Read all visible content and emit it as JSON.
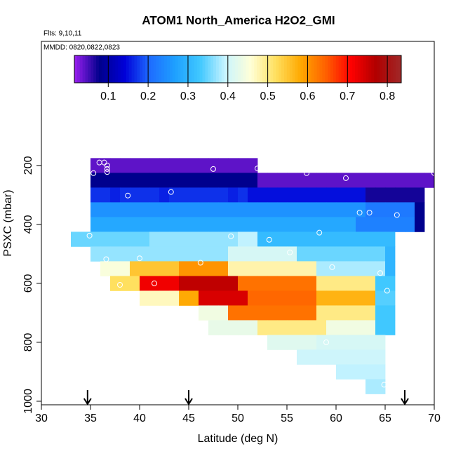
{
  "chart_data": {
    "type": "heatmap",
    "title": "ATOM1 North_America H2O2_GMI",
    "subtitle": "Flts: 9,10,11",
    "annotation": "MMDD: 0820,0822,0823",
    "xlabel": "Latitude (deg N)",
    "ylabel": "PSXC (mbar)",
    "xlim": [
      30,
      70
    ],
    "xticks": [
      30,
      35,
      40,
      45,
      50,
      55,
      60,
      65,
      70
    ],
    "ylim": [
      1012,
      -221
    ],
    "yticks": [
      200,
      400,
      600,
      800,
      1000
    ],
    "clim": [
      0.015,
      0.835
    ],
    "cticks": [
      0.1,
      0.2,
      0.3,
      0.4,
      0.5,
      0.6,
      0.7,
      0.8
    ],
    "colormap": [
      "#9b1ff0",
      "#00008b",
      "#0000d8",
      "#1e6cff",
      "#1ea0ff",
      "#40c8ff",
      "#c8f4ff",
      "#ffffd8",
      "#ffe060",
      "#ffa800",
      "#ff6000",
      "#ff0000",
      "#b00000",
      "#a02828"
    ],
    "x_edges": [
      33,
      34,
      35,
      36,
      37,
      38,
      39,
      40,
      41,
      42,
      43,
      44,
      45,
      46,
      47,
      48,
      49,
      50,
      51,
      52,
      53,
      54,
      55,
      56,
      57,
      58,
      59,
      60,
      61,
      62,
      63,
      64,
      65,
      66,
      67,
      68,
      69,
      70
    ],
    "y_edges": [
      175,
      225,
      275,
      325,
      375,
      425,
      475,
      525,
      575,
      625,
      675,
      725,
      775,
      825,
      875,
      925,
      975
    ],
    "z": [
      [
        null,
        null,
        0.04,
        0.04,
        0.04,
        0.04,
        0.04,
        0.04,
        0.04,
        0.04,
        0.04,
        0.04,
        0.04,
        0.04,
        0.04,
        0.04,
        0.04,
        0.04,
        0.04,
        null,
        null,
        null,
        null,
        null,
        null,
        null,
        null,
        null,
        null,
        null,
        null,
        null,
        null,
        null,
        null,
        null,
        null
      ],
      [
        null,
        null,
        0.08,
        0.08,
        0.08,
        0.08,
        0.08,
        0.08,
        0.08,
        0.08,
        0.08,
        0.08,
        0.08,
        0.08,
        0.08,
        0.08,
        0.08,
        0.08,
        0.08,
        0.04,
        0.04,
        0.04,
        0.04,
        0.04,
        0.04,
        0.04,
        0.04,
        0.04,
        0.04,
        0.04,
        0.04,
        0.04,
        0.04,
        0.04,
        0.04,
        0.04,
        0.04
      ],
      [
        null,
        null,
        0.17,
        0.17,
        0.16,
        0.17,
        0.17,
        0.17,
        0.17,
        0.16,
        0.17,
        0.17,
        0.17,
        0.17,
        0.17,
        0.17,
        0.16,
        0.17,
        0.15,
        0.15,
        0.15,
        0.15,
        0.15,
        0.15,
        0.15,
        0.15,
        0.15,
        0.15,
        0.15,
        0.15,
        0.07,
        0.07,
        0.07,
        0.07,
        0.07,
        0.07,
        null
      ],
      [
        null,
        null,
        0.25,
        0.25,
        0.25,
        0.25,
        0.25,
        0.25,
        0.25,
        0.25,
        0.25,
        0.25,
        0.25,
        0.25,
        0.25,
        0.25,
        0.25,
        0.25,
        0.25,
        0.25,
        0.25,
        0.25,
        0.25,
        0.25,
        0.25,
        0.25,
        0.25,
        0.25,
        0.25,
        0.25,
        0.22,
        0.22,
        0.22,
        0.22,
        0.22,
        0.08,
        null
      ],
      [
        null,
        null,
        0.28,
        0.28,
        0.28,
        0.28,
        0.28,
        0.28,
        0.28,
        0.28,
        0.28,
        0.28,
        0.28,
        0.28,
        0.28,
        0.28,
        0.28,
        0.28,
        0.28,
        0.28,
        0.28,
        0.28,
        0.28,
        0.28,
        0.28,
        0.28,
        0.28,
        0.28,
        0.28,
        0.23,
        0.23,
        0.23,
        0.23,
        0.23,
        0.23,
        0.08,
        null
      ],
      [
        0.35,
        0.35,
        0.35,
        0.35,
        0.35,
        0.35,
        0.35,
        0.35,
        0.37,
        0.37,
        0.37,
        0.37,
        0.37,
        0.37,
        0.37,
        0.37,
        0.37,
        0.39,
        0.39,
        0.31,
        0.31,
        0.31,
        0.31,
        0.31,
        0.31,
        0.31,
        0.31,
        0.31,
        0.31,
        0.31,
        0.31,
        0.31,
        0.31,
        null,
        null,
        null,
        null
      ],
      [
        null,
        null,
        0.37,
        0.37,
        0.37,
        0.37,
        0.37,
        0.37,
        0.37,
        0.37,
        0.37,
        0.37,
        0.37,
        0.37,
        0.37,
        0.37,
        0.41,
        0.41,
        0.41,
        0.41,
        0.41,
        0.41,
        0.41,
        0.35,
        0.35,
        0.35,
        0.35,
        0.35,
        0.35,
        0.35,
        0.35,
        0.35,
        0.3,
        null,
        null,
        null,
        null
      ],
      [
        null,
        null,
        null,
        0.45,
        0.45,
        0.45,
        0.55,
        0.55,
        0.55,
        0.55,
        0.55,
        0.6,
        0.6,
        0.6,
        0.6,
        0.6,
        0.48,
        0.48,
        0.48,
        0.48,
        0.48,
        0.48,
        0.48,
        0.48,
        0.48,
        0.38,
        0.38,
        0.38,
        0.38,
        0.38,
        0.38,
        0.38,
        0.3,
        null,
        null,
        null,
        null
      ],
      [
        null,
        null,
        null,
        null,
        0.52,
        0.52,
        0.52,
        0.72,
        0.72,
        0.72,
        0.72,
        0.76,
        0.76,
        0.76,
        0.76,
        0.76,
        0.76,
        0.63,
        0.63,
        0.63,
        0.63,
        0.63,
        0.63,
        0.63,
        0.63,
        0.5,
        0.5,
        0.5,
        0.5,
        0.5,
        0.5,
        0.33,
        0.33,
        null,
        null,
        null,
        null
      ],
      [
        null,
        null,
        null,
        null,
        null,
        null,
        null,
        0.47,
        0.47,
        0.47,
        0.47,
        0.58,
        0.58,
        0.74,
        0.74,
        0.74,
        0.74,
        0.74,
        0.64,
        0.64,
        0.64,
        0.64,
        0.64,
        0.64,
        0.64,
        0.57,
        0.57,
        0.57,
        0.57,
        0.57,
        0.57,
        0.34,
        0.34,
        null,
        null,
        null,
        null
      ],
      [
        null,
        null,
        null,
        null,
        null,
        null,
        null,
        null,
        null,
        null,
        null,
        null,
        null,
        0.44,
        0.44,
        0.44,
        0.63,
        0.63,
        0.63,
        0.63,
        0.63,
        0.63,
        0.63,
        0.63,
        0.63,
        0.5,
        0.5,
        0.5,
        0.5,
        0.5,
        0.5,
        0.33,
        0.33,
        null,
        null,
        null,
        null
      ],
      [
        null,
        null,
        null,
        null,
        null,
        null,
        null,
        null,
        null,
        null,
        null,
        null,
        null,
        null,
        0.43,
        0.43,
        0.43,
        0.43,
        0.43,
        0.5,
        0.5,
        0.5,
        0.5,
        0.5,
        0.5,
        0.5,
        0.44,
        0.44,
        0.44,
        0.44,
        0.44,
        0.33,
        0.33,
        null,
        null,
        null,
        null
      ],
      [
        null,
        null,
        null,
        null,
        null,
        null,
        null,
        null,
        null,
        null,
        null,
        null,
        null,
        null,
        null,
        null,
        null,
        null,
        null,
        null,
        0.42,
        0.42,
        0.42,
        0.42,
        0.42,
        0.41,
        0.41,
        0.41,
        0.41,
        0.41,
        0.41,
        0.41,
        null,
        null,
        null,
        null,
        null
      ],
      [
        null,
        null,
        null,
        null,
        null,
        null,
        null,
        null,
        null,
        null,
        null,
        null,
        null,
        null,
        null,
        null,
        null,
        null,
        null,
        null,
        null,
        null,
        null,
        0.4,
        0.4,
        0.4,
        0.4,
        0.4,
        0.4,
        0.4,
        0.4,
        0.4,
        null,
        null,
        null,
        null,
        null
      ],
      [
        null,
        null,
        null,
        null,
        null,
        null,
        null,
        null,
        null,
        null,
        null,
        null,
        null,
        null,
        null,
        null,
        null,
        null,
        null,
        null,
        null,
        null,
        null,
        null,
        null,
        null,
        null,
        0.39,
        0.39,
        0.39,
        0.39,
        0.39,
        null,
        null,
        null,
        null,
        null
      ],
      [
        null,
        null,
        null,
        null,
        null,
        null,
        null,
        null,
        null,
        null,
        null,
        null,
        null,
        null,
        null,
        null,
        null,
        null,
        null,
        null,
        null,
        null,
        null,
        null,
        null,
        null,
        null,
        null,
        null,
        null,
        0.38,
        0.38,
        null,
        null,
        null,
        null,
        null
      ]
    ],
    "points": {
      "x": [
        35.3,
        35.9,
        36.4,
        36.7,
        36.7,
        36.7,
        47.5,
        52,
        57,
        61,
        70,
        43.2,
        38.8,
        62.4,
        63.4,
        66.2,
        34.9,
        49.3,
        58.3,
        53.2,
        55.3,
        36.6,
        40,
        46.2,
        59.6,
        64.5,
        41.5,
        38,
        65.2,
        59,
        64.9
      ],
      "y": [
        226,
        190,
        190,
        200,
        212,
        222,
        212,
        210,
        226,
        243,
        226,
        290,
        302,
        360,
        360,
        368,
        438,
        440,
        428,
        452,
        495,
        518,
        515,
        530,
        545,
        565,
        600,
        605,
        625,
        800,
        944
      ]
    },
    "arrows": [
      34.7,
      45,
      67
    ]
  }
}
